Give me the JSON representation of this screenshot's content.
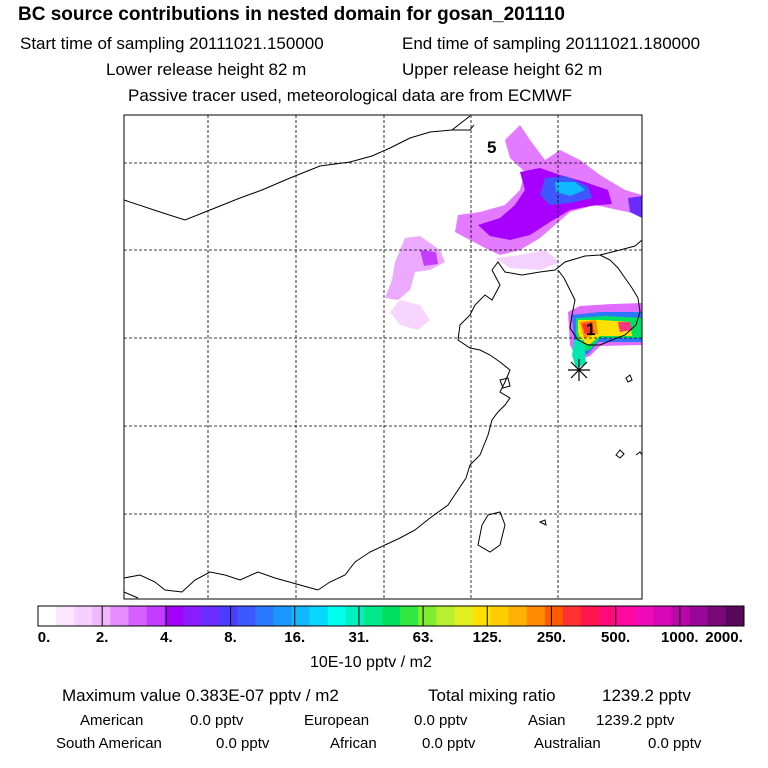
{
  "header": {
    "title": "BC  source contributions in nested domain for gosan_201110",
    "start_label": "Start time of sampling 20111021.150000",
    "end_label": "End time of sampling 20111021.180000",
    "lower_label": "Lower release height   82 m",
    "upper_label": "Upper release height   62 m",
    "passive_label": "Passive tracer used, meteorological data are from ECMWF"
  },
  "map": {
    "labels": [
      {
        "text": "5"
      },
      {
        "text": "1"
      }
    ]
  },
  "chart_data": {
    "type": "heatmap",
    "title": "BC  source contributions in nested domain for gosan_201110",
    "colorbar": {
      "ticks": [
        "0.",
        "2.",
        "4.",
        "8.",
        "16.",
        "31.",
        "63.",
        "125.",
        "250.",
        "500.",
        "1000.",
        "2000."
      ],
      "tick_values": [
        0,
        2,
        4,
        8,
        16,
        31,
        63,
        125,
        250,
        500,
        1000,
        2000
      ],
      "unit": "10E-10 pptv / m2",
      "colors": [
        "#ffffff",
        "#fbe8ff",
        "#f6d0ff",
        "#f0b8ff",
        "#e58cff",
        "#d660ff",
        "#c33cff",
        "#a800ff",
        "#8a1cff",
        "#6a2cff",
        "#4c3cff",
        "#3e58ff",
        "#2c78ff",
        "#1a98ff",
        "#10b8ff",
        "#08d8ff",
        "#00ffee",
        "#00f0c0",
        "#00e88c",
        "#00e060",
        "#30e840",
        "#80ee30",
        "#b8f030",
        "#e0f020",
        "#ffe000",
        "#ffcc00",
        "#ffb000",
        "#ff8c00",
        "#ff5a00",
        "#ff3030",
        "#ff1850",
        "#ff0a78",
        "#ff0aa0",
        "#f00ab8",
        "#d808b8",
        "#b808a8",
        "#980898",
        "#780878",
        "#580858"
      ]
    },
    "stats": {
      "max_value_label": "Maximum value  0.383E-07 pptv / m2",
      "total_label": "Total mixing ratio",
      "total_value": "1239.2 pptv",
      "regions": [
        {
          "name": "American",
          "value": "0.0 pptv"
        },
        {
          "name": "European",
          "value": "0.0 pptv"
        },
        {
          "name": "Asian",
          "value": "1239.2 pptv"
        },
        {
          "name": "South American",
          "value": "0.0 pptv"
        },
        {
          "name": "African",
          "value": "0.0 pptv"
        },
        {
          "name": "Australian",
          "value": "0.0 pptv"
        }
      ]
    }
  }
}
